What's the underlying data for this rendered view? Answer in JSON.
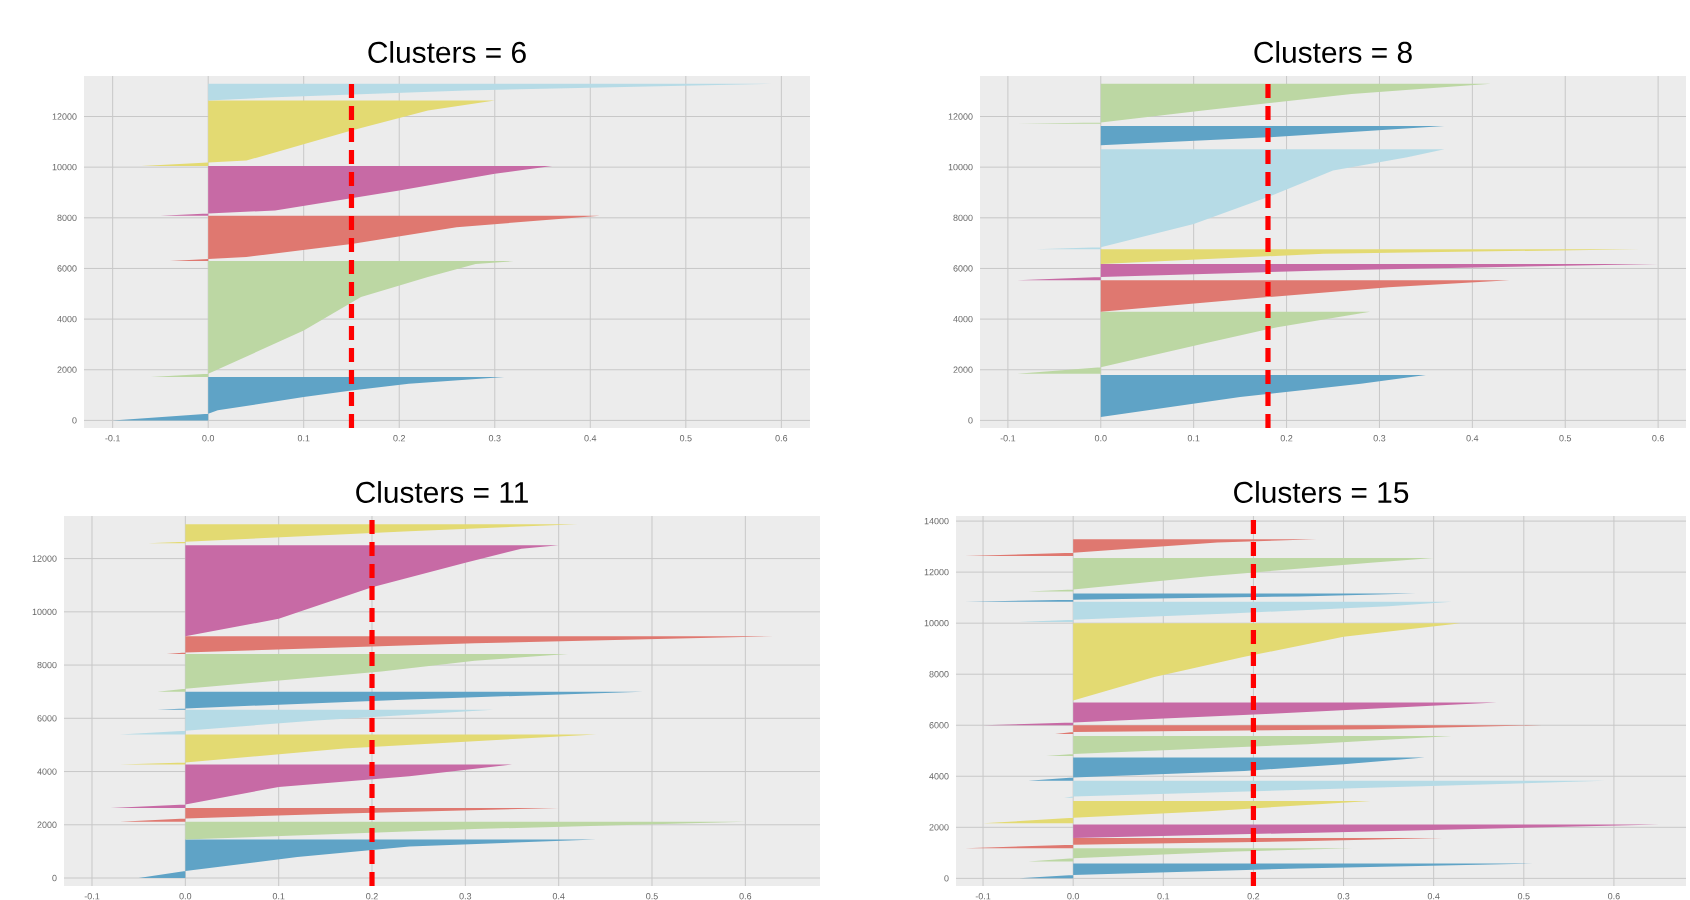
{
  "chart_data": [
    {
      "type": "area",
      "orientation": "horizontal",
      "title": "Clusters = 6",
      "grid": true,
      "xlim": [
        -0.13,
        0.63
      ],
      "ylim": [
        -300,
        13600
      ],
      "xticks": [
        {
          "value": -0.1,
          "label": "-0.1"
        },
        {
          "value": 0,
          "label": "0.0"
        },
        {
          "value": 0.1,
          "label": "0.1"
        },
        {
          "value": 0.2,
          "label": "0.2"
        },
        {
          "value": 0.3,
          "label": "0.3"
        },
        {
          "value": 0.4,
          "label": "0.4"
        },
        {
          "value": 0.5,
          "label": "0.5"
        },
        {
          "value": 0.6,
          "label": "0.6"
        }
      ],
      "yticks": [
        0,
        2000,
        4000,
        6000,
        8000,
        10000,
        12000
      ],
      "ref_lines": [
        {
          "axis": "x",
          "value": 0.15,
          "color": "#ff0000",
          "line_style": "dashed"
        }
      ],
      "series": [
        {
          "color": "#5fa3c6",
          "x": [
            0,
            260,
            400,
            920,
            1180,
            1450,
            1710
          ],
          "values": [
            -0.1,
            0.0,
            0.01,
            0.1,
            0.15,
            0.21,
            0.31
          ]
        },
        {
          "color": "#bcd7a3",
          "x": [
            1710,
            1840,
            3550,
            4870,
            5660,
            6180,
            6290
          ],
          "values": [
            -0.06,
            0.0,
            0.1,
            0.16,
            0.23,
            0.28,
            0.32
          ]
        },
        {
          "color": "#df7870",
          "x": [
            6290,
            6450,
            6970,
            7630,
            8080
          ],
          "values": [
            -0.04,
            0.04,
            0.15,
            0.26,
            0.41
          ]
        },
        {
          "color": "#c76aa5",
          "x": [
            8080,
            8290,
            9080,
            9740,
            10050
          ],
          "values": [
            -0.05,
            0.07,
            0.2,
            0.3,
            0.36
          ]
        },
        {
          "color": "#e3da72",
          "x": [
            10050,
            10260,
            11450,
            12240,
            12630
          ],
          "values": [
            -0.07,
            0.04,
            0.15,
            0.23,
            0.3
          ]
        },
        {
          "color": "#b6dbe6",
          "x": [
            12630,
            12760,
            13030,
            13290
          ],
          "values": [
            0.0,
            0.07,
            0.27,
            0.59
          ]
        }
      ]
    },
    {
      "type": "area",
      "orientation": "horizontal",
      "title": "Clusters = 8",
      "grid": true,
      "xlim": [
        -0.13,
        0.63
      ],
      "ylim": [
        -300,
        13600
      ],
      "xticks": [
        {
          "value": -0.1,
          "label": "-0.1"
        },
        {
          "value": 0,
          "label": "0.0"
        },
        {
          "value": 0.1,
          "label": "0.1"
        },
        {
          "value": 0.2,
          "label": "0.2"
        },
        {
          "value": 0.3,
          "label": "0.3"
        },
        {
          "value": 0.4,
          "label": "0.4"
        },
        {
          "value": 0.5,
          "label": "0.5"
        },
        {
          "value": 0.6,
          "label": "0.6"
        }
      ],
      "yticks": [
        0,
        2000,
        4000,
        6000,
        8000,
        10000,
        12000
      ],
      "ref_lines": [
        {
          "axis": "x",
          "value": 0.18,
          "color": "#ff0000",
          "line_style": "dashed"
        }
      ],
      "series": [
        {
          "color": "#5fa3c6",
          "x": [
            130,
            920,
            1450,
            1790
          ],
          "values": [
            0.0,
            0.15,
            0.28,
            0.35
          ]
        },
        {
          "color": "#bcd7a3",
          "x": [
            1840,
            2100,
            3030,
            3680,
            4290
          ],
          "values": [
            -0.09,
            0.0,
            0.11,
            0.19,
            0.29
          ]
        },
        {
          "color": "#df7870",
          "x": [
            4290,
            4870,
            5260,
            5530
          ],
          "values": [
            0.0,
            0.18,
            0.31,
            0.44
          ]
        },
        {
          "color": "#c76aa5",
          "x": [
            5530,
            5660,
            5920,
            6180
          ],
          "values": [
            -0.09,
            0.0,
            0.24,
            0.6
          ]
        },
        {
          "color": "#e3da72",
          "x": [
            6180,
            6580,
            6760
          ],
          "values": [
            0.0,
            0.24,
            0.58
          ]
        },
        {
          "color": "#b6dbe6",
          "x": [
            6760,
            6840,
            7760,
            8820,
            9870,
            10390,
            10710
          ],
          "values": [
            -0.07,
            0.0,
            0.1,
            0.18,
            0.25,
            0.33,
            0.37
          ]
        },
        {
          "color": "#5fa3c6",
          "x": [
            10870,
            11180,
            11630
          ],
          "values": [
            0.0,
            0.18,
            0.37
          ]
        },
        {
          "color": "#bcd7a3",
          "x": [
            11710,
            11760,
            12240,
            12890,
            13290
          ],
          "values": [
            -0.09,
            0.0,
            0.11,
            0.27,
            0.42
          ]
        }
      ]
    },
    {
      "type": "area",
      "orientation": "horizontal",
      "title": "Clusters = 11",
      "grid": true,
      "xlim": [
        -0.13,
        0.68
      ],
      "ylim": [
        -300,
        13600
      ],
      "xticks": [
        {
          "value": -0.1,
          "label": "-0.1"
        },
        {
          "value": 0,
          "label": "0.0"
        },
        {
          "value": 0.1,
          "label": "0.1"
        },
        {
          "value": 0.2,
          "label": "0.2"
        },
        {
          "value": 0.3,
          "label": "0.3"
        },
        {
          "value": 0.4,
          "label": "0.4"
        },
        {
          "value": 0.5,
          "label": "0.5"
        },
        {
          "value": 0.6,
          "label": "0.6"
        }
      ],
      "yticks": [
        0,
        2000,
        4000,
        6000,
        8000,
        10000,
        12000
      ],
      "ref_lines": [
        {
          "axis": "x",
          "value": 0.2,
          "color": "#ff0000",
          "line_style": "dashed"
        }
      ],
      "series": [
        {
          "color": "#5fa3c6",
          "x": [
            0,
            260,
            790,
            1180,
            1450
          ],
          "values": [
            -0.05,
            0.0,
            0.12,
            0.24,
            0.44
          ]
        },
        {
          "color": "#bcd7a3",
          "x": [
            1450,
            1840,
            2110
          ],
          "values": [
            0.0,
            0.31,
            0.6
          ]
        },
        {
          "color": "#df7870",
          "x": [
            2110,
            2240,
            2420,
            2630
          ],
          "values": [
            -0.07,
            0.0,
            0.17,
            0.4
          ]
        },
        {
          "color": "#c76aa5",
          "x": [
            2630,
            2760,
            3420,
            3820,
            4260
          ],
          "values": [
            -0.08,
            0.0,
            0.1,
            0.24,
            0.35
          ]
        },
        {
          "color": "#e3da72",
          "x": [
            4260,
            4340,
            4870,
            5390
          ],
          "values": [
            -0.07,
            0.0,
            0.17,
            0.44
          ]
        },
        {
          "color": "#b6dbe6",
          "x": [
            5390,
            5530,
            5920,
            6320
          ],
          "values": [
            -0.07,
            0.0,
            0.14,
            0.33
          ]
        },
        {
          "color": "#5fa3c6",
          "x": [
            6320,
            6370,
            6710,
            7000
          ],
          "values": [
            -0.03,
            0.0,
            0.24,
            0.49
          ]
        },
        {
          "color": "#bcd7a3",
          "x": [
            7000,
            7110,
            7760,
            8160,
            8420
          ],
          "values": [
            -0.03,
            0.0,
            0.21,
            0.31,
            0.41
          ]
        },
        {
          "color": "#df7870",
          "x": [
            8420,
            8470,
            8820,
            9080
          ],
          "values": [
            -0.02,
            0.0,
            0.31,
            0.63
          ]
        },
        {
          "color": "#c76aa5",
          "x": [
            9080,
            9740,
            10920,
            11840,
            12370,
            12500
          ],
          "values": [
            0.0,
            0.1,
            0.2,
            0.3,
            0.36,
            0.4
          ]
        },
        {
          "color": "#e3da72",
          "x": [
            12580,
            12630,
            13030,
            13290
          ],
          "values": [
            -0.04,
            0.0,
            0.24,
            0.42
          ]
        }
      ]
    },
    {
      "type": "area",
      "orientation": "horizontal",
      "title": "Clusters = 15",
      "grid": true,
      "xlim": [
        -0.13,
        0.68
      ],
      "ylim": [
        -300,
        14200
      ],
      "xticks": [
        {
          "value": -0.1,
          "label": "-0.1"
        },
        {
          "value": 0,
          "label": "0.0"
        },
        {
          "value": 0.1,
          "label": "0.1"
        },
        {
          "value": 0.2,
          "label": "0.2"
        },
        {
          "value": 0.3,
          "label": "0.3"
        },
        {
          "value": 0.4,
          "label": "0.4"
        },
        {
          "value": 0.5,
          "label": "0.5"
        },
        {
          "value": 0.6,
          "label": "0.6"
        }
      ],
      "yticks": [
        0,
        2000,
        4000,
        6000,
        8000,
        10000,
        12000,
        14000
      ],
      "ref_lines": [
        {
          "axis": "x",
          "value": 0.2,
          "color": "#ff0000",
          "line_style": "dashed"
        }
      ],
      "series": [
        {
          "color": "#5fa3c6",
          "x": [
            0,
            130,
            390,
            580
          ],
          "values": [
            -0.06,
            0.0,
            0.25,
            0.51
          ]
        },
        {
          "color": "#bcd7a3",
          "x": [
            660,
            790,
            1050,
            1180
          ],
          "values": [
            -0.05,
            0.0,
            0.18,
            0.31
          ]
        },
        {
          "color": "#df7870",
          "x": [
            1180,
            1320,
            1450,
            1580
          ],
          "values": [
            -0.12,
            0.0,
            0.25,
            0.41
          ]
        },
        {
          "color": "#c76aa5",
          "x": [
            1580,
            1840,
            2110
          ],
          "values": [
            0.0,
            0.33,
            0.65
          ]
        },
        {
          "color": "#e3da72",
          "x": [
            2160,
            2370,
            2630,
            3030
          ],
          "values": [
            -0.1,
            0.0,
            0.15,
            0.33
          ]
        },
        {
          "color": "#b6dbe6",
          "x": [
            3160,
            3210,
            3550,
            3820
          ],
          "values": [
            -0.01,
            0.0,
            0.33,
            0.59
          ]
        },
        {
          "color": "#5fa3c6",
          "x": [
            3820,
            3950,
            4210,
            4470,
            4740
          ],
          "values": [
            -0.05,
            0.0,
            0.19,
            0.3,
            0.39
          ]
        },
        {
          "color": "#bcd7a3",
          "x": [
            4790,
            4870,
            5260,
            5580
          ],
          "values": [
            -0.03,
            0.0,
            0.26,
            0.42
          ]
        },
        {
          "color": "#df7870",
          "x": [
            5660,
            5740,
            5840,
            6000
          ],
          "values": [
            -0.02,
            0.0,
            0.33,
            0.52
          ]
        },
        {
          "color": "#c76aa5",
          "x": [
            6000,
            6110,
            6450,
            6890
          ],
          "values": [
            -0.1,
            0.0,
            0.22,
            0.47
          ]
        },
        {
          "color": "#e3da72",
          "x": [
            6970,
            7890,
            8680,
            9470,
            10000
          ],
          "values": [
            0.0,
            0.09,
            0.19,
            0.3,
            0.43
          ]
        },
        {
          "color": "#b6dbe6",
          "x": [
            10050,
            10130,
            10390,
            10660,
            10840
          ],
          "values": [
            -0.06,
            0.0,
            0.18,
            0.35,
            0.42
          ]
        },
        {
          "color": "#5fa3c6",
          "x": [
            10840,
            10920,
            11050,
            11160
          ],
          "values": [
            -0.12,
            0.0,
            0.25,
            0.38
          ]
        },
        {
          "color": "#bcd7a3",
          "x": [
            11240,
            11320,
            11840,
            12370,
            12550
          ],
          "values": [
            -0.05,
            0.0,
            0.15,
            0.33,
            0.4
          ]
        },
        {
          "color": "#df7870",
          "x": [
            12630,
            12760,
            13160,
            13290
          ],
          "values": [
            -0.12,
            0.0,
            0.16,
            0.27
          ]
        }
      ]
    }
  ]
}
